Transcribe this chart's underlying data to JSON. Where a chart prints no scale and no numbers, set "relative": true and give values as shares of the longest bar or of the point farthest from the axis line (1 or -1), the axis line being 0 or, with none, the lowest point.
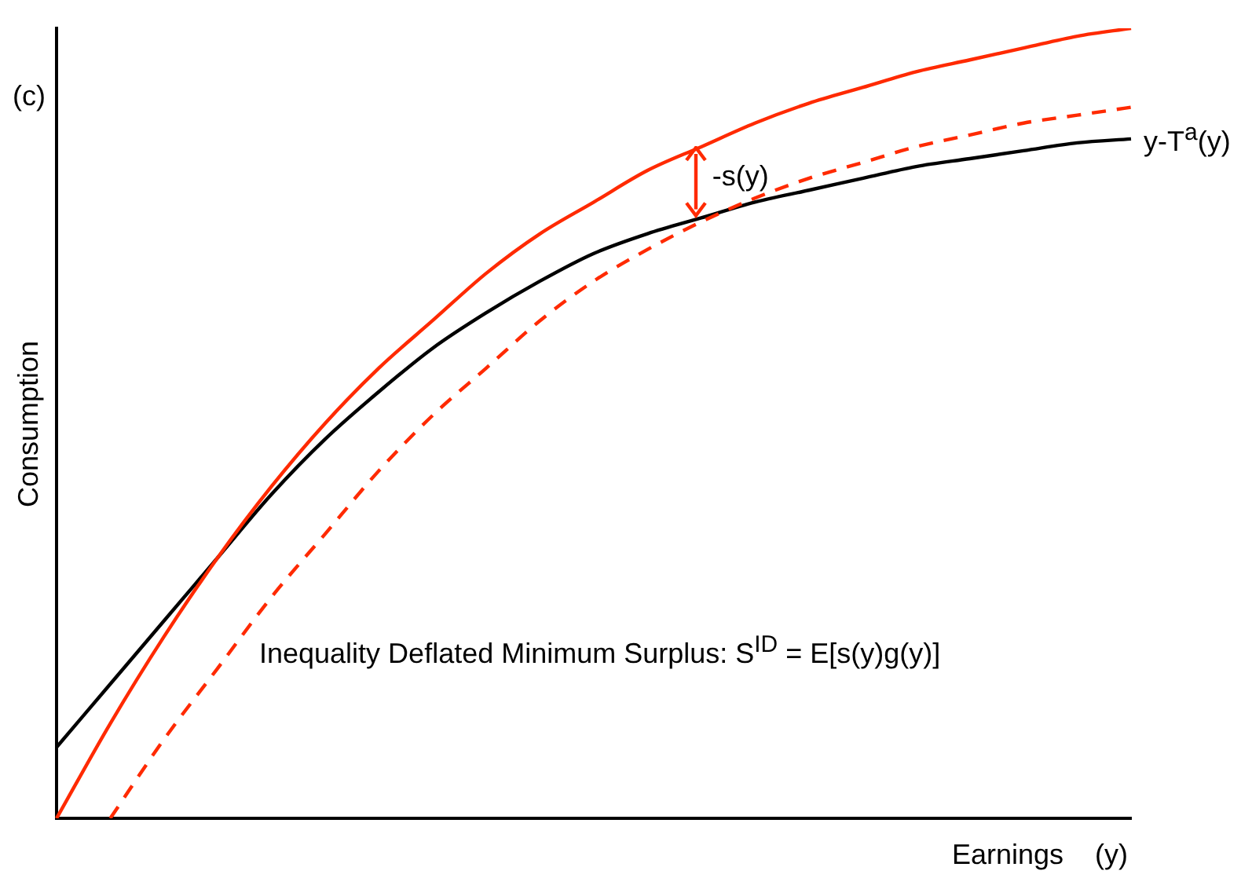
{
  "chart_data": {
    "type": "line",
    "relative": true,
    "xlabel": "Earnings    (y)",
    "ylabel": "Consumption",
    "legend": false,
    "grid": false,
    "marker": "none",
    "tick_labels": false,
    "categories": [
      null,
      null,
      null,
      null,
      null,
      null,
      null,
      null,
      null,
      null,
      null,
      null,
      null,
      null,
      null,
      null,
      null,
      null,
      null,
      null,
      null
    ],
    "series": [
      {
        "color": "#ff2a00",
        "line_style": "solid",
        "values": [
          0,
          0.12,
          0.23,
          0.33,
          0.42,
          0.5,
          0.57,
          0.63,
          0.69,
          0.74,
          0.78,
          0.82,
          0.85,
          0.88,
          0.905,
          0.925,
          0.945,
          0.96,
          0.975,
          0.99,
          1
        ]
      },
      {
        "color": "#ff2a00",
        "line_style": "dashed",
        "values": [
          null,
          0,
          0.1,
          0.19,
          0.28,
          0.36,
          0.44,
          0.51,
          0.57,
          0.63,
          0.68,
          0.72,
          0.755,
          0.785,
          0.81,
          0.83,
          0.85,
          0.865,
          0.88,
          0.89,
          0.9
        ]
      },
      {
        "name": "y-T$^{a}$(y)",
        "color": "#000000",
        "line_style": "solid",
        "values": [
          0.09,
          0.17,
          0.25,
          0.33,
          0.41,
          0.48,
          0.54,
          0.595,
          0.64,
          0.68,
          0.715,
          0.74,
          0.76,
          0.78,
          0.795,
          0.81,
          0.825,
          0.835,
          0.845,
          0.855,
          0.86
        ]
      }
    ],
    "annotations": [
      "(c)",
      "-s(y)",
      "Inequality Deflated Minimum Surplus: S$^{ID}$ = E[s(y)g(y)]"
    ]
  }
}
